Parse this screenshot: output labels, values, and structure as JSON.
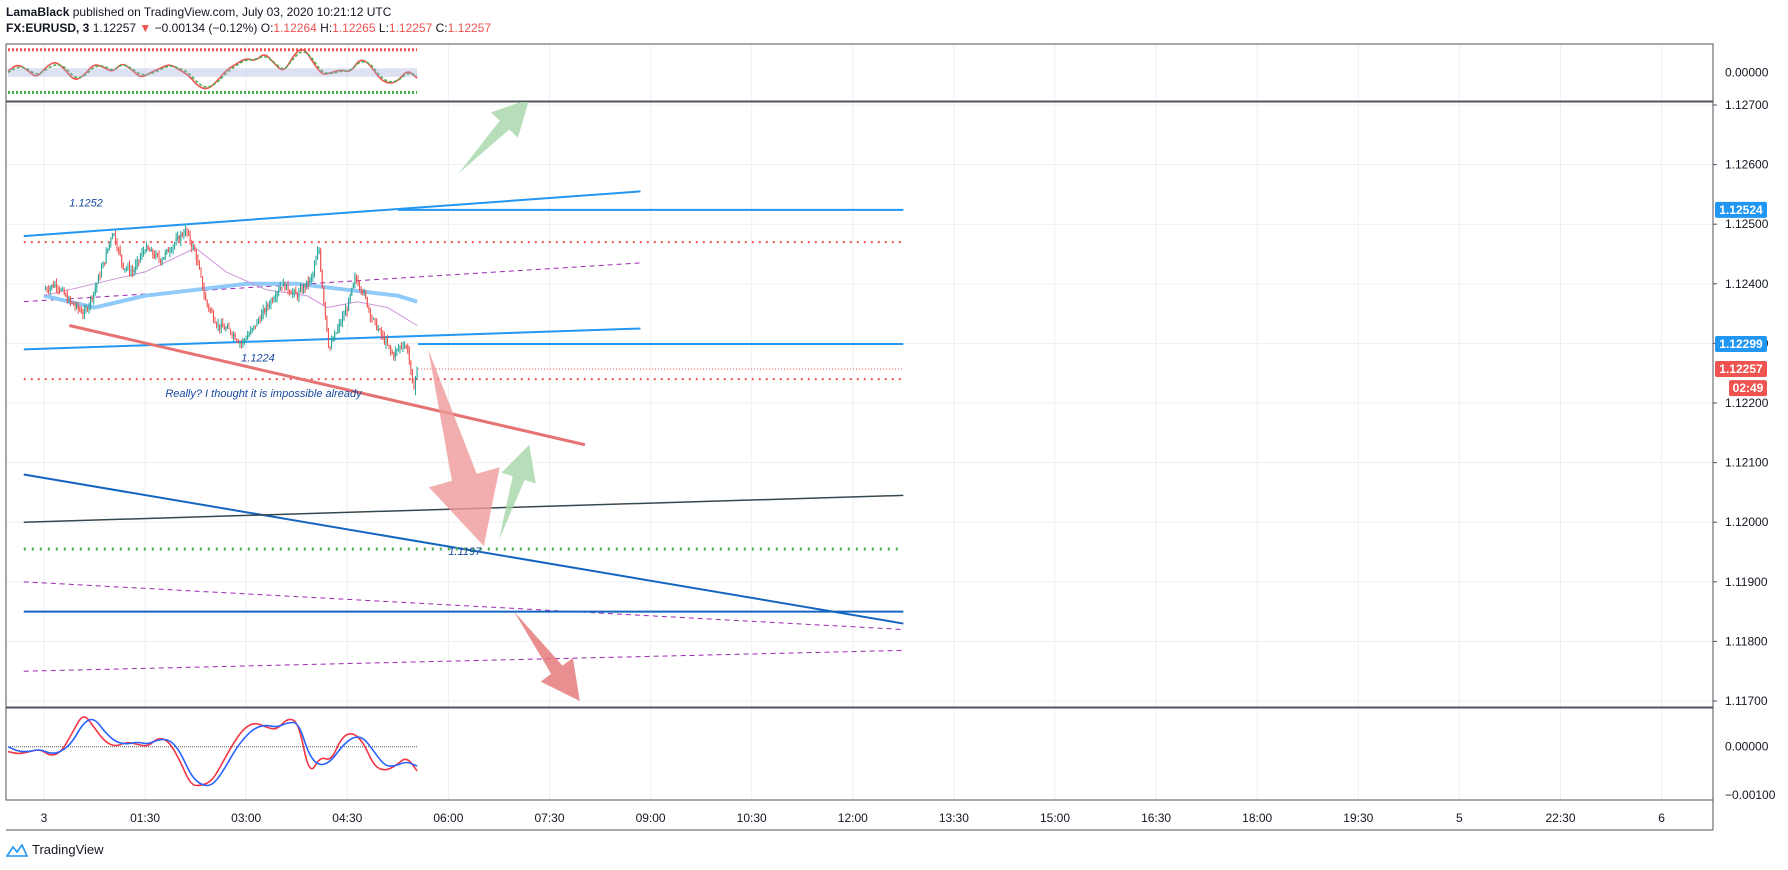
{
  "header": {
    "author": "LamaBlack",
    "published": "published on TradingView.com, July 03, 2020 10:21:12 UTC",
    "symbol": "FX:EURUSD, 3",
    "last": "1.12257",
    "arrow": "▼",
    "change": "−0.00134 (−0.12%)",
    "o_label": "O:",
    "o": "1.12264",
    "h_label": "H:",
    "h": "1.12265",
    "l_label": "L:",
    "l": "1.12257",
    "c_label": "C:",
    "c": "1.12257"
  },
  "footer": {
    "brand": "TradingView",
    "icon": "tradingview-logo-icon"
  },
  "chart_data": [
    {
      "type": "line",
      "panel": "top-oscillator",
      "yticks": [
        "0.00000"
      ],
      "ylim": [
        -1,
        1
      ],
      "series": [
        {
          "color": "#ef5350",
          "values": [
            0.05,
            0.3,
            0.1,
            -0.2,
            0.2,
            0.4,
            0.1,
            -0.3,
            -0.1,
            0.3,
            0.2,
            0.0,
            0.35,
            0.1,
            -0.2,
            0.0,
            0.15,
            0.3,
            0.1,
            -0.1,
            -0.5,
            -0.6,
            -0.3,
            0.1,
            0.3,
            0.5,
            0.4,
            0.7,
            0.3,
            0.0,
            0.6,
            0.9,
            0.4,
            -0.1,
            0.0,
            0.1,
            0.0,
            0.5,
            0.3,
            -0.2,
            -0.4,
            -0.3,
            0.1,
            -0.2
          ]
        },
        {
          "color": "#4caf50",
          "values": [
            0.0,
            0.2,
            0.15,
            -0.1,
            0.1,
            0.3,
            0.2,
            -0.2,
            -0.15,
            0.2,
            0.25,
            0.05,
            0.3,
            0.15,
            -0.1,
            -0.05,
            0.1,
            0.25,
            0.15,
            0.0,
            -0.4,
            -0.55,
            -0.35,
            0.0,
            0.25,
            0.45,
            0.45,
            0.6,
            0.35,
            0.05,
            0.5,
            0.8,
            0.5,
            0.0,
            -0.05,
            0.05,
            0.05,
            0.4,
            0.35,
            -0.1,
            -0.35,
            -0.3,
            0.0,
            -0.1
          ]
        }
      ],
      "levels": [
        {
          "value": 0.8,
          "color": "#ef5350"
        },
        {
          "value": -0.7,
          "color": "#4caf50"
        }
      ]
    },
    {
      "type": "candlestick",
      "panel": "main",
      "x_ticks": [
        "3",
        "01:30",
        "03:00",
        "04:30",
        "06:00",
        "07:30",
        "09:00",
        "10:30",
        "12:00",
        "13:30",
        "15:00",
        "16:30",
        "18:00",
        "19:30",
        "5",
        "22:30",
        "6"
      ],
      "y_ticks": [
        "1.12700",
        "1.12600",
        "1.12500",
        "1.12400",
        "1.12300",
        "1.12200",
        "1.12100",
        "1.12000",
        "1.11900",
        "1.11800",
        "1.11700"
      ],
      "ylim": [
        1.1169,
        1.12705
      ],
      "price_labels": [
        {
          "text": "1.12524",
          "value": 1.12524,
          "color": "#2196f3"
        },
        {
          "text": "1.12299",
          "value": 1.12299,
          "color": "#2196f3"
        },
        {
          "text": "1.12257",
          "value": 1.12257,
          "color": "#ef5350"
        },
        {
          "text": "02:49",
          "value": 1.12225,
          "color": "#ef5350"
        }
      ],
      "annotations": [
        {
          "text": "1.1252",
          "x": 0.25,
          "y": 1.1253,
          "color": "#1848a0"
        },
        {
          "text": "1.1224",
          "x": 1.95,
          "y": 1.1227,
          "color": "#1848a0"
        },
        {
          "text": "Really? I thought it is impossible already",
          "x": 1.2,
          "y": 1.1221,
          "color": "#1848a0"
        },
        {
          "text": "1.1197",
          "x": 4.0,
          "y": 1.11945,
          "color": "#1848a0"
        }
      ],
      "close_path": [
        {
          "x": 0,
          "y": 1.1239
        },
        {
          "x": 0.12,
          "y": 1.124
        },
        {
          "x": 0.25,
          "y": 1.1237
        },
        {
          "x": 0.4,
          "y": 1.1235
        },
        {
          "x": 0.5,
          "y": 1.1239
        },
        {
          "x": 0.6,
          "y": 1.1244
        },
        {
          "x": 0.68,
          "y": 1.1249
        },
        {
          "x": 0.78,
          "y": 1.1243
        },
        {
          "x": 0.88,
          "y": 1.1242
        },
        {
          "x": 1.0,
          "y": 1.1246
        },
        {
          "x": 1.15,
          "y": 1.1244
        },
        {
          "x": 1.3,
          "y": 1.1247
        },
        {
          "x": 1.4,
          "y": 1.1249
        },
        {
          "x": 1.5,
          "y": 1.1245
        },
        {
          "x": 1.6,
          "y": 1.1237
        },
        {
          "x": 1.72,
          "y": 1.1233
        },
        {
          "x": 1.85,
          "y": 1.1232
        },
        {
          "x": 1.95,
          "y": 1.123
        },
        {
          "x": 2.05,
          "y": 1.1232
        },
        {
          "x": 2.2,
          "y": 1.1236
        },
        {
          "x": 2.35,
          "y": 1.124
        },
        {
          "x": 2.5,
          "y": 1.1238
        },
        {
          "x": 2.65,
          "y": 1.1241
        },
        {
          "x": 2.72,
          "y": 1.1246
        },
        {
          "x": 2.75,
          "y": 1.124
        },
        {
          "x": 2.82,
          "y": 1.1229
        },
        {
          "x": 2.92,
          "y": 1.1233
        },
        {
          "x": 3.0,
          "y": 1.1236
        },
        {
          "x": 3.08,
          "y": 1.1241
        },
        {
          "x": 3.15,
          "y": 1.1239
        },
        {
          "x": 3.25,
          "y": 1.1234
        },
        {
          "x": 3.35,
          "y": 1.1231
        },
        {
          "x": 3.45,
          "y": 1.1228
        },
        {
          "x": 3.55,
          "y": 1.123
        },
        {
          "x": 3.6,
          "y": 1.1229
        },
        {
          "x": 3.65,
          "y": 1.1222
        },
        {
          "x": 3.69,
          "y": 1.12257
        }
      ],
      "candle_count": 240,
      "moving_averages": [
        {
          "color": "#90caf9",
          "width": 4,
          "values": [
            [
              0,
              1.1238
            ],
            [
              0.5,
              1.1236
            ],
            [
              1.0,
              1.1238
            ],
            [
              1.5,
              1.1239
            ],
            [
              2.0,
              1.124
            ],
            [
              2.5,
              1.124
            ],
            [
              3.0,
              1.1239
            ],
            [
              3.5,
              1.1238
            ],
            [
              3.69,
              1.1237
            ]
          ]
        },
        {
          "color": "#ce93d8",
          "width": 1,
          "values": [
            [
              0,
              1.1238
            ],
            [
              0.5,
              1.124
            ],
            [
              1.0,
              1.1242
            ],
            [
              1.5,
              1.1246
            ],
            [
              1.8,
              1.1242
            ],
            [
              2.2,
              1.1239
            ],
            [
              2.6,
              1.1238
            ],
            [
              2.8,
              1.1236
            ],
            [
              3.1,
              1.1237
            ],
            [
              3.4,
              1.1236
            ],
            [
              3.69,
              1.1233
            ]
          ]
        }
      ],
      "lines": [
        {
          "color": "#2196f3",
          "width": 2,
          "dash": "",
          "points": [
            [
              -0.2,
              1.1248
            ],
            [
              5.9,
              1.12555
            ]
          ]
        },
        {
          "color": "#2196f3",
          "width": 2,
          "dash": "",
          "points": [
            [
              3.5,
              1.12524
            ],
            [
              8.5,
              1.12524
            ]
          ]
        },
        {
          "color": "#ef5350",
          "width": 2,
          "dash": "2,5",
          "points": [
            [
              -0.2,
              1.1247
            ],
            [
              8.5,
              1.1247
            ]
          ]
        },
        {
          "color": "#9c27b0",
          "width": 1,
          "dash": "5,4",
          "points": [
            [
              -0.2,
              1.1237
            ],
            [
              5.9,
              1.12435
            ]
          ]
        },
        {
          "color": "#2196f3",
          "width": 2,
          "dash": "",
          "points": [
            [
              -0.2,
              1.1229
            ],
            [
              5.9,
              1.12325
            ]
          ]
        },
        {
          "color": "#2196f3",
          "width": 2,
          "dash": "",
          "points": [
            [
              3.7,
              1.12299
            ],
            [
              8.5,
              1.12299
            ]
          ]
        },
        {
          "color": "#ef5350",
          "width": 1,
          "dash": "1,2",
          "points": [
            [
              3.7,
              1.12257
            ],
            [
              8.5,
              1.12257
            ]
          ]
        },
        {
          "color": "#ef5350",
          "width": 2,
          "dash": "2,5",
          "points": [
            [
              -0.2,
              1.1224
            ],
            [
              8.5,
              1.1224
            ]
          ]
        },
        {
          "color": "#e57373",
          "width": 3,
          "dash": "",
          "points": [
            [
              0.25,
              1.1233
            ],
            [
              5.35,
              1.1213
            ]
          ]
        },
        {
          "color": "#1565c0",
          "width": 2,
          "dash": "",
          "points": [
            [
              -0.2,
              1.1208
            ],
            [
              8.5,
              1.1183
            ]
          ]
        },
        {
          "color": "#37474f",
          "width": 1.5,
          "dash": "",
          "points": [
            [
              -0.2,
              1.12
            ],
            [
              8.5,
              1.12045
            ]
          ]
        },
        {
          "color": "#4caf50",
          "width": 3,
          "dash": "2,6",
          "points": [
            [
              -0.2,
              1.11955
            ],
            [
              8.5,
              1.11955
            ]
          ]
        },
        {
          "color": "#9c27b0",
          "width": 1,
          "dash": "5,4",
          "points": [
            [
              -0.2,
              1.119
            ],
            [
              8.5,
              1.1182
            ]
          ]
        },
        {
          "color": "#1565c0",
          "width": 2,
          "dash": "",
          "points": [
            [
              -0.2,
              1.1185
            ],
            [
              8.5,
              1.1185
            ]
          ]
        },
        {
          "color": "#9c27b0",
          "width": 1,
          "dash": "5,4",
          "points": [
            [
              -0.2,
              1.1175
            ],
            [
              8.5,
              1.11785
            ]
          ]
        }
      ],
      "arrows": [
        {
          "color": "#a5d6a7",
          "from": [
            4.1,
            1.12585
          ],
          "to": [
            4.8,
            1.1271
          ]
        },
        {
          "color": "#ef9a9a",
          "from": [
            3.8,
            1.1229
          ],
          "to": [
            4.35,
            1.1196
          ]
        },
        {
          "color": "#a5d6a7",
          "from": [
            4.5,
            1.1197
          ],
          "to": [
            4.8,
            1.1213
          ]
        },
        {
          "color": "#e57373",
          "from": [
            4.65,
            1.1185
          ],
          "to": [
            5.3,
            1.117
          ]
        }
      ]
    },
    {
      "type": "line",
      "panel": "bottom-oscillator",
      "yticks": [
        "0.00000",
        "−0.00100"
      ],
      "ylim": [
        -0.0011,
        0.0008
      ],
      "series": [
        {
          "color": "#f23645",
          "values": [
            -0.0001,
            -0.00015,
            -0.0001,
            -5e-05,
            -0.0002,
            -0.0001,
            0.0003,
            0.0007,
            0.0004,
            0.0001,
            0.0,
            0.0001,
            5e-05,
            0.0,
            0.0002,
            0.0001,
            -0.0003,
            -0.0008,
            -0.0008,
            -0.0007,
            -0.0003,
            0.0001,
            0.0004,
            0.0005,
            0.0004,
            0.00035,
            0.0006,
            0.0005,
            -0.0006,
            -0.0002,
            -0.0003,
            0.0002,
            0.0003,
            0.0001,
            -0.0004,
            -0.0005,
            -0.0004,
            -0.0002,
            -0.0005
          ]
        },
        {
          "color": "#2962ff",
          "values": [
            0.0,
            -0.0001,
            -0.0001,
            -5e-05,
            -0.00015,
            -0.0001,
            0.0001,
            0.0005,
            0.0006,
            0.0003,
            0.0001,
            5e-05,
            0.0001,
            5e-05,
            0.00015,
            0.00015,
            -0.0001,
            -0.0006,
            -0.0008,
            -0.0008,
            -0.0005,
            -0.0001,
            0.0002,
            0.0004,
            0.00045,
            0.0004,
            0.0005,
            0.0005,
            -0.0002,
            -0.0004,
            -0.0003,
            0.0,
            0.0002,
            0.0002,
            -0.0001,
            -0.0004,
            -0.0004,
            -0.0003,
            -0.0004
          ]
        }
      ],
      "levels": [
        {
          "value": 0,
          "color": "#555555"
        }
      ]
    }
  ]
}
